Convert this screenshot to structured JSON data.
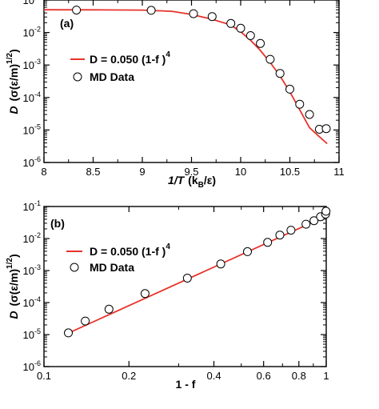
{
  "colors": {
    "model_line": "#e8332a",
    "marker_edge": "#000000",
    "marker_fill": "#ffffff",
    "axis": "#000000"
  },
  "chart_data": [
    {
      "type": "line",
      "panel_label": "(a)",
      "xlabel": "1/T",
      "xlabel_unit": "(k",
      "xlabel_unit_sub": "B",
      "xlabel_unit_end": "/ε)",
      "ylabel": "D",
      "ylabel_unit": "(σ(ε/m)",
      "ylabel_unit_sup": "1/2",
      "ylabel_unit_end": ")",
      "xlim": [
        8,
        11
      ],
      "ylim": [
        1e-06,
        0.1
      ],
      "yscale": "log",
      "xticks": [
        8,
        8.5,
        9,
        9.5,
        10,
        10.5,
        11
      ],
      "xtick_labels": [
        "8",
        "8.5",
        "9",
        "9.5",
        "10",
        "10.5",
        "11"
      ],
      "ytick_labels": [
        {
          "base": "10",
          "exp": "-6"
        },
        {
          "base": "10",
          "exp": "-5"
        },
        {
          "base": "10",
          "exp": "-4"
        },
        {
          "base": "10",
          "exp": "-3"
        },
        {
          "base": "10",
          "exp": "-2"
        },
        {
          "base": "10",
          "exp": "-1"
        }
      ],
      "legend_position": "center-left",
      "series": [
        {
          "name": "D = 0.050 (1-f )",
          "name_sup": "4",
          "kind": "line",
          "x": [
            8.0,
            8.5,
            9.0,
            9.3,
            9.5,
            9.7,
            9.9,
            10.0,
            10.1,
            10.2,
            10.3,
            10.4,
            10.5,
            10.6,
            10.7,
            10.8,
            10.88
          ],
          "y": [
            0.05,
            0.0497,
            0.049,
            0.045,
            0.036,
            0.026,
            0.017,
            0.0105,
            0.0058,
            0.0028,
            0.0012,
            0.00046,
            0.00015,
            4.2e-05,
            1.18e-05,
            6.2e-06,
            3.8e-06
          ]
        },
        {
          "name": "MD Data",
          "kind": "scatter",
          "x": [
            8.33,
            9.09,
            9.52,
            9.71,
            9.9,
            10.0,
            10.1,
            10.2,
            10.3,
            10.4,
            10.5,
            10.6,
            10.7,
            10.8,
            10.87
          ],
          "y": [
            0.049,
            0.048,
            0.038,
            0.031,
            0.019,
            0.0135,
            0.008,
            0.0046,
            0.0015,
            0.00055,
            0.00018,
            6.2e-05,
            3e-05,
            1.05e-05,
            1.1e-05
          ]
        }
      ]
    },
    {
      "type": "line",
      "panel_label": "(b)",
      "xlabel": "1 - f",
      "ylabel": "D",
      "ylabel_unit": "(σ(ε/m)",
      "ylabel_unit_sup": "1/2",
      "ylabel_unit_end": ")",
      "xlim": [
        0.1,
        1.0
      ],
      "ylim": [
        1e-06,
        0.1
      ],
      "xscale": "log",
      "yscale": "log",
      "xticks": [
        0.1,
        0.2,
        0.4,
        0.6,
        0.8,
        1
      ],
      "xtick_labels": [
        "0.1",
        "0.2",
        "0.4",
        "0.6",
        "0.8",
        "1"
      ],
      "ytick_labels": [
        {
          "base": "10",
          "exp": "-6"
        },
        {
          "base": "10",
          "exp": "-5"
        },
        {
          "base": "10",
          "exp": "-4"
        },
        {
          "base": "10",
          "exp": "-3"
        },
        {
          "base": "10",
          "exp": "-2"
        },
        {
          "base": "10",
          "exp": "-1"
        }
      ],
      "legend_position": "top-left",
      "series": [
        {
          "name": "D = 0.050 (1-f )",
          "name_sup": "4",
          "kind": "line",
          "x": [
            0.122,
            1.0
          ],
          "y": [
            1.11e-05,
            0.05
          ]
        },
        {
          "name": "MD Data",
          "kind": "scatter",
          "x": [
            0.122,
            0.14,
            0.17,
            0.228,
            0.322,
            0.423,
            0.526,
            0.62,
            0.685,
            0.75,
            0.848,
            0.905,
            0.955,
            0.995,
            0.998
          ],
          "y": [
            1.13e-05,
            2.65e-05,
            6.2e-05,
            0.00019,
            0.00058,
            0.0016,
            0.0039,
            0.0076,
            0.0128,
            0.0182,
            0.028,
            0.036,
            0.048,
            0.058,
            0.071
          ]
        }
      ]
    }
  ]
}
